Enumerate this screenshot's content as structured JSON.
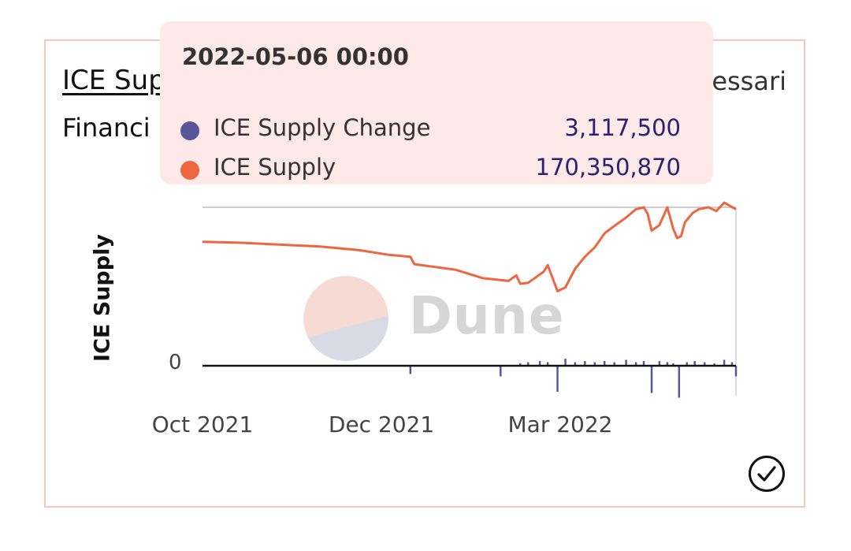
{
  "card": {
    "title": "ICE Sup",
    "subtitle": "Financi",
    "author": "essari"
  },
  "tooltip": {
    "date": "2022-05-06 00:00",
    "rows": [
      {
        "label": "ICE Supply Change",
        "value": "3,117,500",
        "color": "#58579a"
      },
      {
        "label": "ICE Supply",
        "value": "170,350,870",
        "color": "#ef6540"
      }
    ]
  },
  "watermark": {
    "text": "Dune"
  },
  "icons": {
    "check": "check-circle-icon"
  },
  "chart_data": {
    "type": "line",
    "ylabel": "ICE Supply",
    "y_ticks": [
      "0"
    ],
    "x_ticks": [
      "Oct 2021",
      "Dec 2021",
      "Mar 2022"
    ],
    "grid": false,
    "series": [
      {
        "name": "ICE Supply",
        "color": "#ef6540",
        "type": "line",
        "x": [
          "2021-09-01",
          "2021-09-20",
          "2021-10-10",
          "2021-10-31",
          "2021-11-20",
          "2021-12-05",
          "2021-12-16",
          "2021-12-18",
          "2022-01-08",
          "2022-01-22",
          "2022-02-04",
          "2022-02-08",
          "2022-02-10",
          "2022-02-14",
          "2022-02-22",
          "2022-02-24",
          "2022-03-01",
          "2022-03-05",
          "2022-03-07",
          "2022-03-10",
          "2022-03-15",
          "2022-03-20",
          "2022-03-25",
          "2022-03-30",
          "2022-04-05",
          "2022-04-10",
          "2022-04-14",
          "2022-04-16",
          "2022-04-18",
          "2022-04-22",
          "2022-04-26",
          "2022-04-29",
          "2022-05-01",
          "2022-05-03",
          "2022-05-05",
          "2022-05-09",
          "2022-05-12",
          "2022-05-17",
          "2022-05-21",
          "2022-05-25",
          "2022-05-31"
        ],
        "values": [
          133,
          132,
          130,
          128,
          124,
          119,
          117,
          109,
          103,
          94,
          91,
          97,
          88,
          89,
          101,
          108,
          80,
          84,
          92,
          104,
          117,
          127,
          142,
          150,
          159,
          168,
          170,
          163,
          145,
          151,
          170,
          147,
          137,
          139,
          154,
          164,
          168,
          170,
          166,
          175,
          168
        ]
      },
      {
        "name": "ICE Supply Change",
        "color": "#58579a",
        "type": "bar",
        "x": [
          "2021-12-16",
          "2022-01-31",
          "2022-02-10",
          "2022-02-14",
          "2022-02-20",
          "2022-02-24",
          "2022-03-01",
          "2022-03-05",
          "2022-03-10",
          "2022-03-15",
          "2022-03-20",
          "2022-03-25",
          "2022-03-30",
          "2022-04-05",
          "2022-04-10",
          "2022-04-14",
          "2022-04-18",
          "2022-04-22",
          "2022-04-26",
          "2022-04-29",
          "2022-05-02",
          "2022-05-06",
          "2022-05-10",
          "2022-05-15",
          "2022-05-20",
          "2022-05-25",
          "2022-05-29",
          "2022-05-31"
        ],
        "values": [
          -7,
          -9,
          2,
          3,
          4,
          3,
          -22,
          6,
          3,
          4,
          3,
          4,
          3,
          5,
          3,
          4,
          -23,
          4,
          3,
          2,
          -27,
          3,
          4,
          3,
          2,
          5,
          3,
          -9
        ]
      }
    ]
  }
}
